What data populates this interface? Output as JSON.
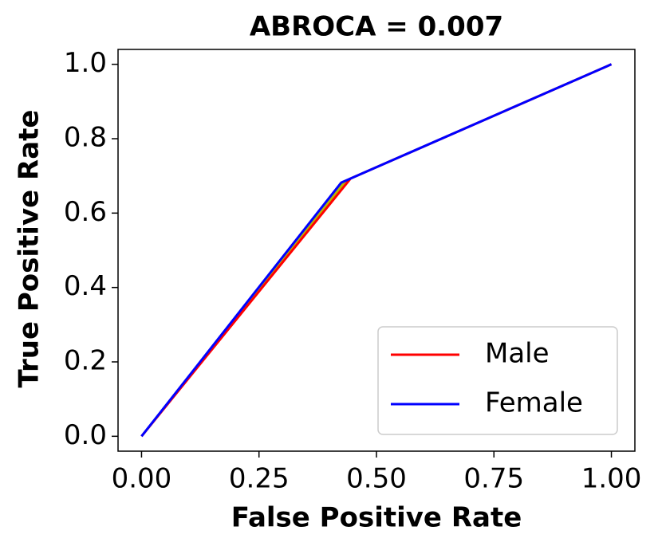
{
  "chart_data": {
    "type": "line",
    "title": "ABROCA = 0.007",
    "xlabel": "False Positive Rate",
    "ylabel": "True Positive Rate",
    "series": [
      {
        "name": "Male",
        "color": "#ff0000",
        "x": [
          0,
          0.445,
          1
        ],
        "values": [
          0,
          0.693,
          1
        ]
      },
      {
        "name": "Female",
        "color": "#0000ff",
        "x": [
          0,
          0.425,
          1
        ],
        "values": [
          0,
          0.682,
          1
        ]
      }
    ],
    "fill_between_color": "#b8b800",
    "xlim": [
      -0.05,
      1.05
    ],
    "ylim": [
      -0.04,
      1.04
    ],
    "xticks": [
      {
        "value": 0,
        "label": "0.00"
      },
      {
        "value": 0.25,
        "label": "0.25"
      },
      {
        "value": 0.5,
        "label": "0.50"
      },
      {
        "value": 0.75,
        "label": "0.75"
      },
      {
        "value": 1,
        "label": "1.00"
      }
    ],
    "yticks": [
      {
        "value": 0,
        "label": "0.0"
      },
      {
        "value": 0.2,
        "label": "0.2"
      },
      {
        "value": 0.4,
        "label": "0.4"
      },
      {
        "value": 0.6,
        "label": "0.6"
      },
      {
        "value": 0.8,
        "label": "0.8"
      },
      {
        "value": 1,
        "label": "1.0"
      }
    ],
    "legend": "lower right",
    "grid": false
  }
}
